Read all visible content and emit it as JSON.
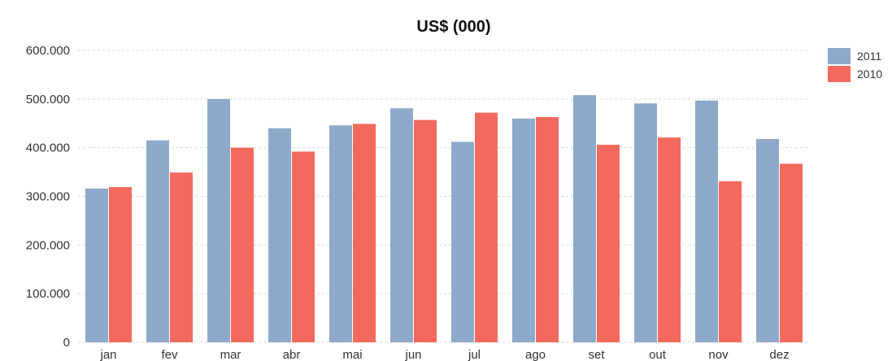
{
  "chart_data": {
    "type": "bar",
    "title": "US$ (000)",
    "xlabel": "",
    "ylabel": "",
    "categories": [
      "jan",
      "fev",
      "mar",
      "abr",
      "mai",
      "jun",
      "jul",
      "ago",
      "set",
      "out",
      "nov",
      "dez"
    ],
    "series": [
      {
        "name": "2011",
        "color": "#8ea9c9",
        "values": [
          316000,
          415000,
          500000,
          440000,
          446000,
          481000,
          412000,
          460000,
          508000,
          491000,
          497000,
          418000
        ]
      },
      {
        "name": "2010",
        "color": "#f4695e",
        "values": [
          319000,
          349000,
          400000,
          392000,
          449000,
          457000,
          472000,
          463000,
          406000,
          421000,
          331000,
          367000
        ]
      }
    ],
    "ylim": [
      0,
      600000
    ],
    "yticks": [
      0,
      100000,
      200000,
      300000,
      400000,
      500000,
      600000
    ],
    "ytick_labels": [
      "0",
      "100.000",
      "200.000",
      "300.000",
      "400.000",
      "500.000",
      "600.000"
    ],
    "grid": true,
    "legend_position": "top-right"
  }
}
